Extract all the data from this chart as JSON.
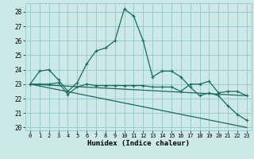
{
  "xlabel": "Humidex (Indice chaleur)",
  "bg_color": "#cce8e8",
  "grid_color": "#99cccc",
  "line_color": "#1a6b5a",
  "xlim": [
    -0.5,
    23.5
  ],
  "ylim": [
    19.8,
    28.6
  ],
  "yticks": [
    20,
    21,
    22,
    23,
    24,
    25,
    26,
    27,
    28
  ],
  "xticks": [
    0,
    1,
    2,
    3,
    4,
    5,
    6,
    7,
    8,
    9,
    10,
    11,
    12,
    13,
    14,
    15,
    16,
    17,
    18,
    19,
    20,
    21,
    22,
    23
  ],
  "series1_x": [
    0,
    1,
    2,
    3,
    4,
    5,
    6,
    7,
    8,
    9,
    10,
    11,
    12,
    13,
    14,
    15,
    16,
    17,
    18,
    19,
    20,
    21,
    22,
    23
  ],
  "series1_y": [
    23.0,
    23.9,
    24.0,
    23.3,
    22.5,
    23.1,
    24.4,
    25.3,
    25.5,
    26.0,
    28.2,
    27.7,
    26.0,
    23.5,
    23.9,
    23.9,
    23.5,
    22.8,
    22.2,
    22.4,
    22.2,
    21.5,
    20.9,
    20.5
  ],
  "series2_x": [
    0,
    1,
    2,
    3,
    4,
    5,
    6,
    7,
    8,
    9,
    10,
    11,
    12,
    13,
    14,
    15,
    16,
    17,
    18,
    19,
    20,
    21,
    22,
    23
  ],
  "series2_y": [
    23.0,
    23.0,
    23.0,
    23.1,
    22.3,
    22.8,
    23.0,
    22.9,
    22.9,
    22.9,
    22.9,
    22.9,
    22.9,
    22.8,
    22.8,
    22.8,
    22.5,
    23.0,
    23.0,
    23.2,
    22.4,
    22.5,
    22.5,
    22.2
  ],
  "series3_x": [
    0,
    23
  ],
  "series3_y": [
    23.0,
    22.2
  ],
  "series4_x": [
    0,
    23
  ],
  "series4_y": [
    23.0,
    20.0
  ]
}
